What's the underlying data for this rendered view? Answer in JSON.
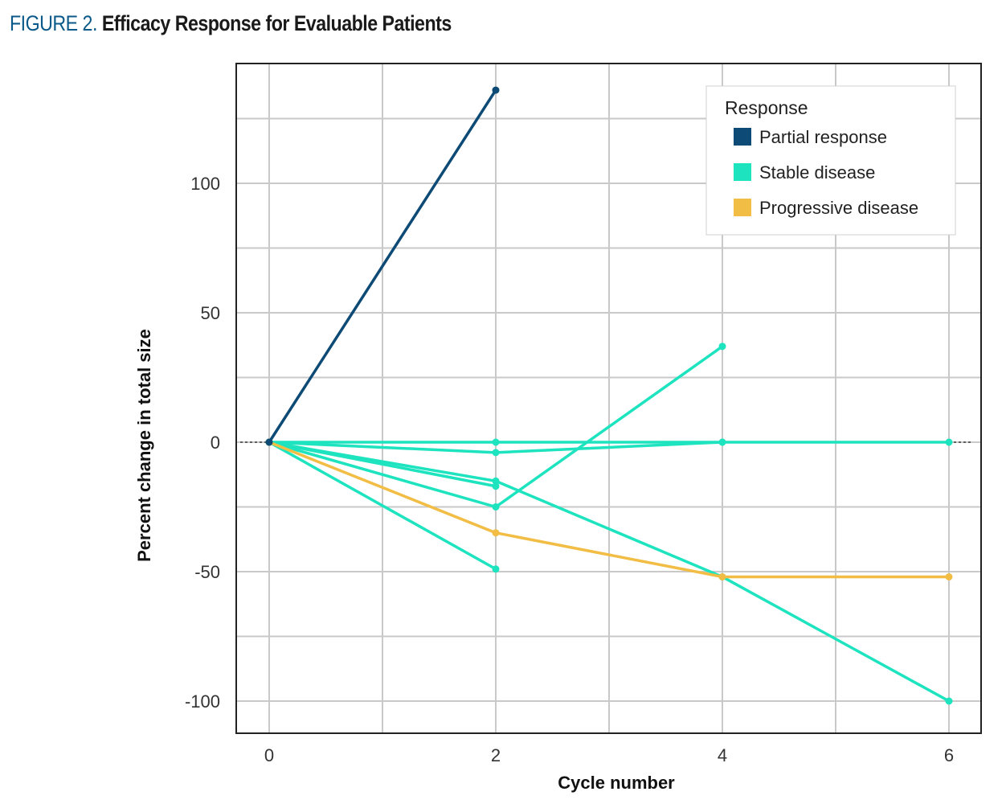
{
  "figure": {
    "label": "FIGURE 2.",
    "title": "Efficacy Response for Evaluable Patients"
  },
  "chart_data": {
    "type": "line",
    "title": "Efficacy Response for Evaluable Patients",
    "xlabel": "Cycle number",
    "ylabel": "Percent change in total size",
    "xlim": [
      -0.3,
      6.3
    ],
    "ylim": [
      -110,
      147
    ],
    "x_ticks": [
      0,
      2,
      4,
      6
    ],
    "y_ticks": [
      100,
      50,
      0,
      -50,
      -100
    ],
    "grid": true,
    "reference_line": {
      "y": 0,
      "style": "dashed"
    },
    "legend": {
      "title": "Response",
      "position": "top-right",
      "entries": [
        {
          "label": "Partial response",
          "color": "#0d4a75"
        },
        {
          "label": "Stable disease",
          "color": "#1de3bf"
        },
        {
          "label": "Progressive disease",
          "color": "#f2bd45"
        }
      ]
    },
    "series": [
      {
        "name": "Partial response",
        "color": "#0d4a75",
        "points": [
          [
            0,
            0
          ],
          [
            2,
            136
          ]
        ]
      },
      {
        "name": "Stable disease",
        "color": "#1de3bf",
        "points": [
          [
            0,
            0
          ],
          [
            2,
            0
          ],
          [
            4,
            0
          ],
          [
            6,
            0
          ]
        ]
      },
      {
        "name": "Stable disease",
        "color": "#1de3bf",
        "points": [
          [
            0,
            0
          ],
          [
            2,
            -4
          ],
          [
            4,
            0
          ]
        ]
      },
      {
        "name": "Stable disease",
        "color": "#1de3bf",
        "points": [
          [
            0,
            0
          ],
          [
            2,
            -15
          ],
          [
            4,
            -52
          ],
          [
            6,
            -100
          ]
        ]
      },
      {
        "name": "Stable disease",
        "color": "#1de3bf",
        "points": [
          [
            0,
            0
          ],
          [
            2,
            -17
          ]
        ]
      },
      {
        "name": "Stable disease",
        "color": "#1de3bf",
        "points": [
          [
            0,
            0
          ],
          [
            2,
            -25
          ],
          [
            4,
            37
          ]
        ]
      },
      {
        "name": "Stable disease",
        "color": "#1de3bf",
        "points": [
          [
            0,
            0
          ],
          [
            2,
            -49
          ]
        ]
      },
      {
        "name": "Progressive disease",
        "color": "#f2bd45",
        "points": [
          [
            0,
            0
          ],
          [
            2,
            -35
          ],
          [
            4,
            -52
          ],
          [
            6,
            -52
          ]
        ]
      }
    ]
  }
}
